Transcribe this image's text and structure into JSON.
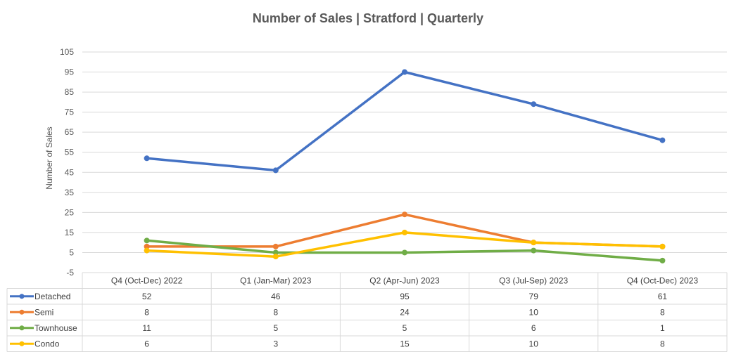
{
  "chart_data": {
    "type": "line",
    "title": "Number of Sales | Stratford | Quarterly",
    "xlabel": "",
    "ylabel": "Number of Sales",
    "ylim": [
      -5,
      105
    ],
    "yticks": [
      -5,
      5,
      15,
      25,
      35,
      45,
      55,
      65,
      75,
      85,
      95,
      105
    ],
    "grid": true,
    "legend": "data-table",
    "categories": [
      "Q4 (Oct-Dec) 2022",
      "Q1 (Jan-Mar) 2023",
      "Q2 (Apr-Jun) 2023",
      "Q3 (Jul-Sep) 2023",
      "Q4 (Oct-Dec) 2023"
    ],
    "series": [
      {
        "name": "Detached",
        "color": "#4472c4",
        "values": [
          52,
          46,
          95,
          79,
          61
        ]
      },
      {
        "name": "Semi",
        "color": "#ed7d31",
        "values": [
          8,
          8,
          24,
          10,
          8
        ]
      },
      {
        "name": "Townhouse",
        "color": "#70ad47",
        "values": [
          11,
          5,
          5,
          6,
          1
        ]
      },
      {
        "name": "Condo",
        "color": "#ffc000",
        "values": [
          6,
          3,
          15,
          10,
          8
        ]
      }
    ]
  }
}
